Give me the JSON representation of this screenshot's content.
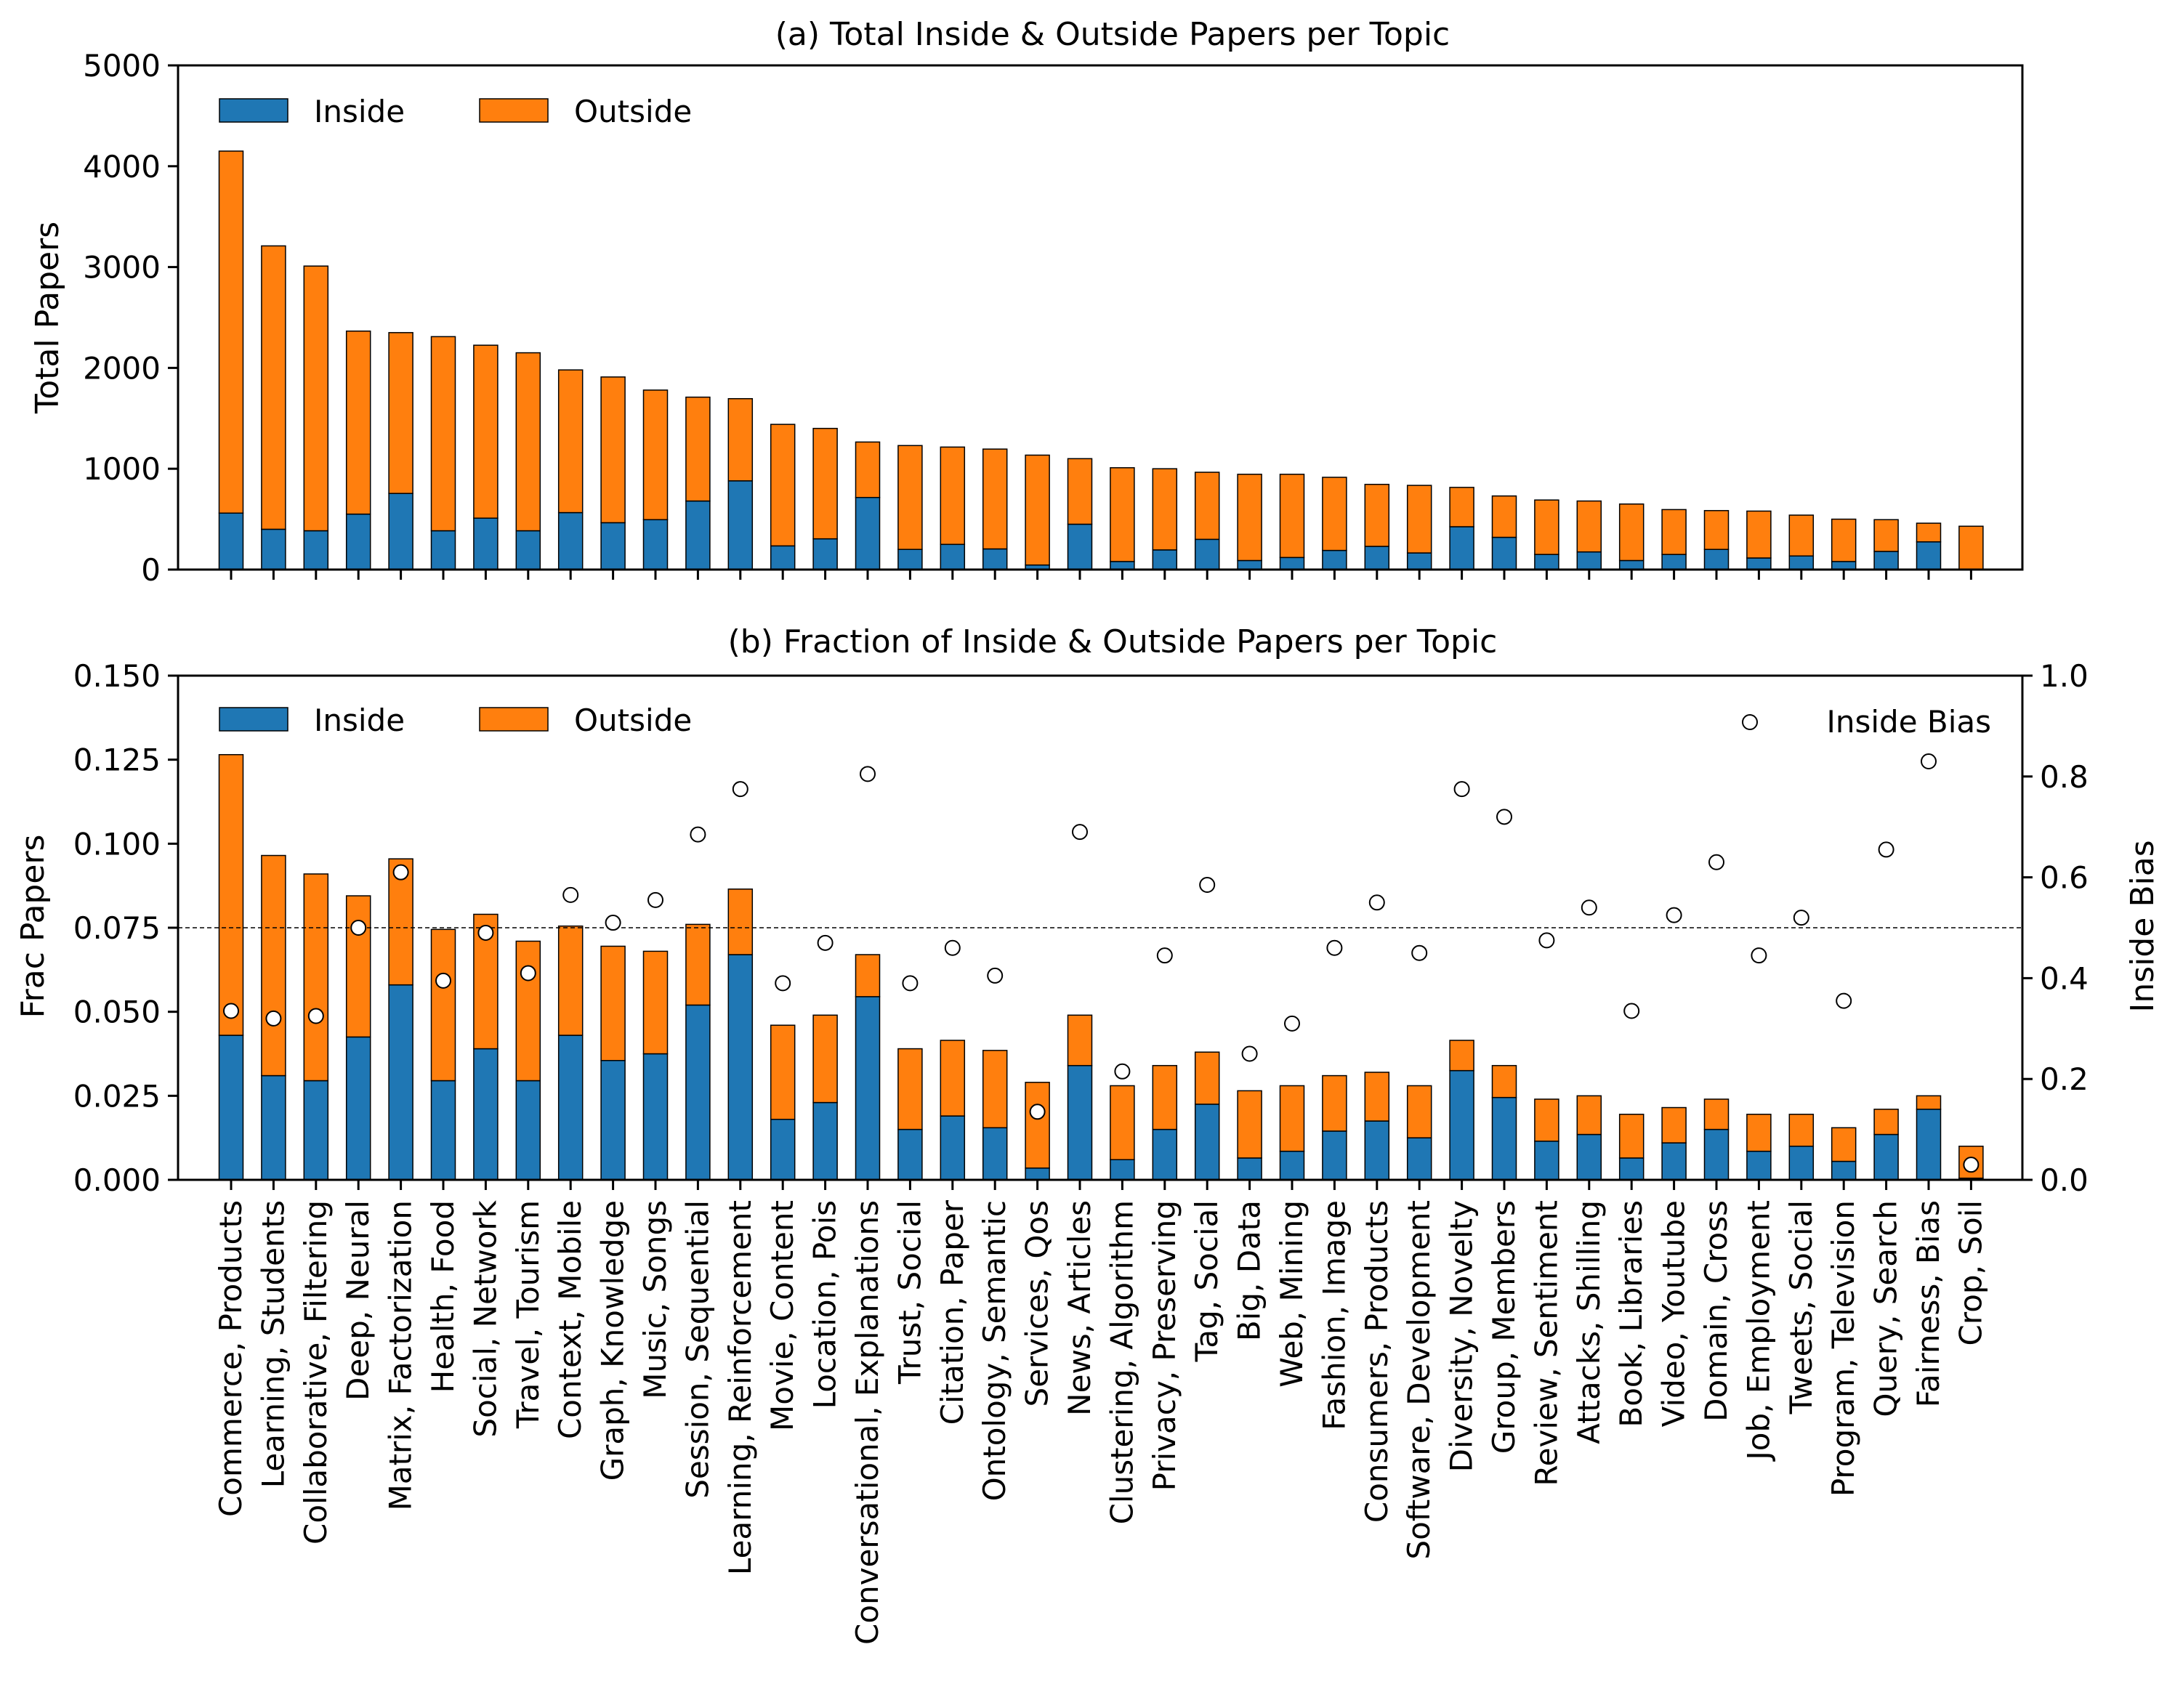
{
  "chart_data": [
    {
      "type": "bar",
      "stacked": true,
      "title": "(a) Total Inside & Outside Papers per Topic",
      "xlabel": "",
      "ylabel": "Total Papers",
      "ylim": [
        0,
        5000
      ],
      "yticks": [
        "0",
        "1000",
        "2000",
        "3000",
        "4000",
        "5000"
      ],
      "legend": {
        "placement": "top-left",
        "entries": [
          "Inside",
          "Outside"
        ]
      },
      "categories": [
        "Commerce, Products",
        "Learning, Students",
        "Collaborative, Filtering",
        "Deep, Neural",
        "Matrix, Factorization",
        "Health, Food",
        "Social, Network",
        "Travel, Tourism",
        "Context, Mobile",
        "Graph, Knowledge",
        "Music, Songs",
        "Session, Sequential",
        "Learning, Reinforcement",
        "Movie, Content",
        "Location, Pois",
        "Conversational, Explanations",
        "Trust, Social",
        "Citation, Paper",
        "Ontology, Semantic",
        "Services, Qos",
        "News, Articles",
        "Clustering, Algorithm",
        "Privacy, Preserving",
        "Tag, Social",
        "Big, Data",
        "Web, Mining",
        "Fashion, Image",
        "Consumers, Products",
        "Software, Development",
        "Diversity, Novelty",
        "Group, Members",
        "Review, Sentiment",
        "Attacks, Shilling",
        "Book, Libraries",
        "Video, Youtube",
        "Domain, Cross",
        "Job, Employment",
        "Tweets, Social",
        "Program, Television",
        "Query, Search",
        "Fairness, Bias",
        "Crop, Soil"
      ],
      "series": [
        {
          "name": "Inside",
          "color": "#1f77b4",
          "values": [
            560,
            400,
            385,
            550,
            755,
            385,
            510,
            385,
            565,
            465,
            495,
            680,
            880,
            235,
            305,
            715,
            200,
            250,
            205,
            45,
            450,
            80,
            195,
            300,
            90,
            120,
            190,
            230,
            165,
            425,
            320,
            150,
            175,
            90,
            150,
            200,
            115,
            135,
            80,
            180,
            275,
            5
          ]
        },
        {
          "name": "Outside",
          "color": "#ff7f0e",
          "values": [
            3590,
            2810,
            2625,
            1815,
            1595,
            1925,
            1715,
            1765,
            1415,
            1445,
            1285,
            1030,
            815,
            1205,
            1095,
            550,
            1030,
            965,
            990,
            1090,
            650,
            930,
            805,
            665,
            855,
            825,
            725,
            615,
            670,
            390,
            410,
            540,
            505,
            560,
            445,
            385,
            465,
            405,
            420,
            315,
            185,
            425
          ]
        }
      ]
    },
    {
      "type": "bar",
      "stacked": true,
      "title": "(b) Fraction of Inside & Outside Papers per Topic",
      "xlabel": "",
      "ylabel": "Frac Papers",
      "ylabel_right": "Inside Bias",
      "ylim": [
        0,
        0.15
      ],
      "ylim_right": [
        0,
        1.0
      ],
      "yticks": [
        "0.000",
        "0.025",
        "0.050",
        "0.075",
        "0.100",
        "0.125",
        "0.150"
      ],
      "yticks_right": [
        "0.0",
        "0.2",
        "0.4",
        "0.6",
        "0.8",
        "1.0"
      ],
      "reference_line_y": 0.075,
      "legend": {
        "placement": "top-left",
        "entries": [
          "Inside",
          "Outside"
        ]
      },
      "legend_right": {
        "placement": "top-right",
        "entries": [
          "Inside Bias"
        ]
      },
      "series": [
        {
          "name": "Inside",
          "color": "#1f77b4",
          "values": [
            0.043,
            0.031,
            0.0295,
            0.0425,
            0.058,
            0.0295,
            0.039,
            0.0295,
            0.043,
            0.0355,
            0.0375,
            0.052,
            0.067,
            0.018,
            0.023,
            0.0545,
            0.015,
            0.019,
            0.0155,
            0.0035,
            0.034,
            0.006,
            0.015,
            0.0225,
            0.0065,
            0.0085,
            0.0145,
            0.0175,
            0.0125,
            0.0325,
            0.0245,
            0.0115,
            0.0135,
            0.0065,
            0.011,
            0.015,
            0.0085,
            0.01,
            0.0055,
            0.0135,
            0.021,
            0.0005
          ]
        },
        {
          "name": "Outside",
          "color": "#ff7f0e",
          "values": [
            0.0835,
            0.0655,
            0.0615,
            0.042,
            0.0375,
            0.045,
            0.04,
            0.0415,
            0.0325,
            0.034,
            0.0305,
            0.024,
            0.0195,
            0.028,
            0.026,
            0.0125,
            0.024,
            0.0225,
            0.023,
            0.0255,
            0.015,
            0.022,
            0.019,
            0.0155,
            0.02,
            0.0195,
            0.0165,
            0.0145,
            0.0155,
            0.009,
            0.0095,
            0.0125,
            0.0115,
            0.013,
            0.0105,
            0.009,
            0.011,
            0.0095,
            0.01,
            0.0075,
            0.004,
            0.0095
          ]
        },
        {
          "name": "Inside Bias",
          "axis": "right",
          "type": "scatter",
          "values": [
            0.335,
            0.32,
            0.325,
            0.5,
            0.61,
            0.395,
            0.49,
            0.41,
            0.565,
            0.51,
            0.555,
            0.685,
            0.775,
            0.39,
            0.47,
            0.805,
            0.39,
            0.46,
            0.405,
            0.135,
            0.69,
            0.215,
            0.445,
            0.585,
            0.25,
            0.31,
            0.46,
            0.55,
            0.45,
            0.775,
            0.72,
            0.475,
            0.54,
            0.335,
            0.525,
            0.63,
            0.445,
            0.52,
            0.355,
            0.655,
            0.83,
            0.03
          ]
        }
      ]
    }
  ]
}
